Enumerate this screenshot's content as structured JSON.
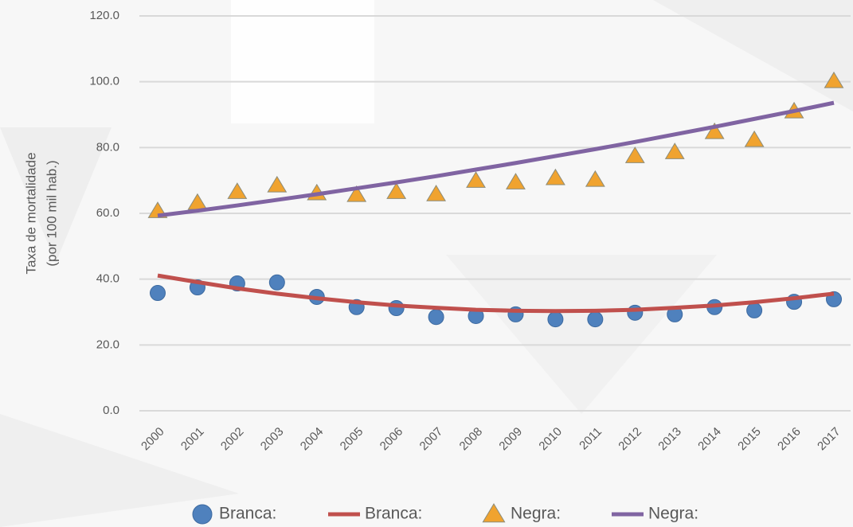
{
  "chart_data": {
    "type": "scatter",
    "ylabel": [
      "Taxa de mortalidade",
      "(por 100 mil hab.)"
    ],
    "categories": [
      "2000",
      "2001",
      "2002",
      "2003",
      "2004",
      "2005",
      "2006",
      "2007",
      "2008",
      "2009",
      "2010",
      "2011",
      "2012",
      "2013",
      "2014",
      "2015",
      "2016",
      "2017"
    ],
    "ylim": [
      0,
      120
    ],
    "yticks": [
      {
        "value": 0,
        "label": "0.0"
      },
      {
        "value": 20,
        "label": "20.0"
      },
      {
        "value": 40,
        "label": "40.0"
      },
      {
        "value": 60,
        "label": "60.0"
      },
      {
        "value": 80,
        "label": "80.0"
      },
      {
        "value": 100,
        "label": "100.0"
      },
      {
        "value": 120,
        "label": "120.0"
      }
    ],
    "grid": true,
    "legend": "bottom",
    "series": [
      {
        "name": "Branca:",
        "color": "#4f81bd",
        "style": "marker",
        "marker": "circle",
        "values": [
          35.8,
          37.5,
          38.7,
          39.0,
          34.6,
          31.5,
          31.2,
          28.5,
          28.8,
          29.3,
          27.8,
          27.8,
          29.8,
          29.3,
          31.5,
          30.5,
          33.1,
          33.9
        ]
      },
      {
        "name": "Branca:",
        "color": "#c0504d",
        "style": "line",
        "values": [
          41.1,
          39.1,
          37.2,
          35.6,
          34.2,
          33.0,
          32.0,
          31.3,
          30.7,
          30.4,
          30.3,
          30.4,
          30.7,
          31.3,
          32.0,
          33.0,
          34.2,
          35.6
        ]
      },
      {
        "name": "Negra:",
        "color": "#f0a32f",
        "style": "marker",
        "marker": "triangle",
        "values": [
          60.7,
          63.2,
          66.5,
          68.5,
          66.1,
          65.6,
          66.5,
          65.8,
          69.9,
          69.4,
          70.7,
          70.2,
          77.4,
          78.6,
          84.7,
          82.3,
          91.0,
          100.2
        ]
      },
      {
        "name": "Negra:",
        "color": "#8064a2",
        "style": "line",
        "values": [
          59.3,
          60.8,
          62.4,
          64.1,
          65.8,
          67.6,
          69.4,
          71.3,
          73.3,
          75.3,
          77.4,
          79.5,
          81.7,
          84.0,
          86.3,
          88.7,
          91.1,
          93.6
        ]
      }
    ]
  }
}
